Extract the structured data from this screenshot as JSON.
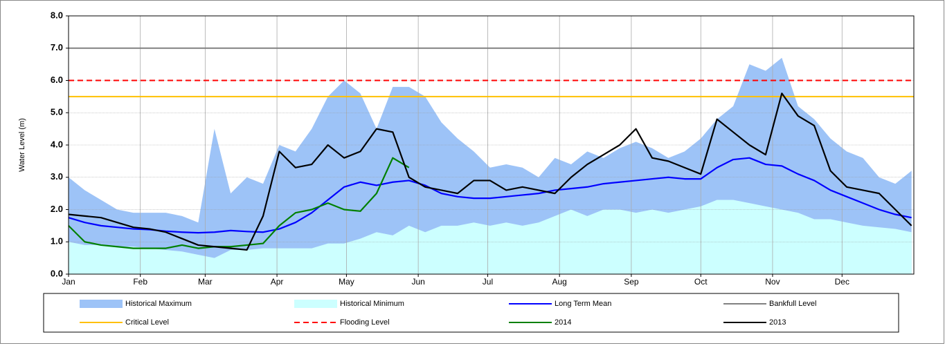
{
  "chart_data": {
    "type": "line",
    "y_label": "Water Level (m)",
    "xlim": [
      0,
      365
    ],
    "xticks": [
      {
        "value": 0,
        "label": "Jan"
      },
      {
        "value": 31,
        "label": "Feb"
      },
      {
        "value": 59,
        "label": "Mar"
      },
      {
        "value": 90,
        "label": "Apr"
      },
      {
        "value": 120,
        "label": "May"
      },
      {
        "value": 151,
        "label": "Jun"
      },
      {
        "value": 181,
        "label": "Jul"
      },
      {
        "value": 212,
        "label": "Aug"
      },
      {
        "value": 243,
        "label": "Sep"
      },
      {
        "value": 273,
        "label": "Oct"
      },
      {
        "value": 304,
        "label": "Nov"
      },
      {
        "value": 334,
        "label": "Dec"
      }
    ],
    "ylim": [
      0,
      8
    ],
    "yticks": [
      {
        "value": 0,
        "label": "0.0"
      },
      {
        "value": 1,
        "label": "1.0"
      },
      {
        "value": 2,
        "label": "2.0"
      },
      {
        "value": 3,
        "label": "3.0"
      },
      {
        "value": 4,
        "label": "4.0"
      },
      {
        "value": 5,
        "label": "5.0"
      },
      {
        "value": 6,
        "label": "6.0"
      },
      {
        "value": 7,
        "label": "7.0"
      },
      {
        "value": 8,
        "label": "8.0"
      }
    ],
    "grid": true,
    "x": [
      0,
      7,
      14,
      21,
      28,
      35,
      42,
      49,
      56,
      63,
      70,
      77,
      84,
      91,
      98,
      105,
      112,
      119,
      126,
      133,
      140,
      147,
      154,
      161,
      168,
      175,
      182,
      189,
      196,
      203,
      210,
      217,
      224,
      231,
      238,
      245,
      252,
      259,
      266,
      273,
      280,
      287,
      294,
      301,
      308,
      315,
      322,
      329,
      336,
      343,
      350,
      357,
      364
    ],
    "series": [
      {
        "name": "Historical Maximum",
        "kind": "area",
        "color": "#9DC3F7",
        "values": [
          3.0,
          2.6,
          2.3,
          2.0,
          1.9,
          1.9,
          1.9,
          1.8,
          1.6,
          4.5,
          2.5,
          3.0,
          2.8,
          4.0,
          3.8,
          4.5,
          5.5,
          6.0,
          5.6,
          4.5,
          5.8,
          5.8,
          5.5,
          4.7,
          4.2,
          3.8,
          3.3,
          3.4,
          3.3,
          3.0,
          3.6,
          3.4,
          3.8,
          3.6,
          3.9,
          4.1,
          3.9,
          3.6,
          3.8,
          4.2,
          4.8,
          5.2,
          6.5,
          6.3,
          6.7,
          5.2,
          4.8,
          4.2,
          3.8,
          3.6,
          3.0,
          2.8,
          3.2
        ]
      },
      {
        "name": "Historical Minimum",
        "kind": "area",
        "color": "#CCFFFF",
        "values": [
          1.0,
          0.9,
          0.9,
          0.85,
          0.85,
          0.8,
          0.75,
          0.7,
          0.6,
          0.5,
          0.75,
          0.75,
          0.8,
          0.8,
          0.8,
          0.8,
          0.95,
          0.95,
          1.1,
          1.3,
          1.2,
          1.5,
          1.3,
          1.5,
          1.5,
          1.6,
          1.5,
          1.6,
          1.5,
          1.6,
          1.8,
          2.0,
          1.8,
          2.0,
          2.0,
          1.9,
          2.0,
          1.9,
          2.0,
          2.1,
          2.3,
          2.3,
          2.2,
          2.1,
          2.0,
          1.9,
          1.7,
          1.7,
          1.6,
          1.5,
          1.45,
          1.4,
          1.3
        ]
      },
      {
        "name": "Long Term Mean",
        "kind": "line",
        "color": "#0000FF",
        "values": [
          1.75,
          1.6,
          1.5,
          1.45,
          1.4,
          1.38,
          1.33,
          1.3,
          1.28,
          1.3,
          1.35,
          1.32,
          1.3,
          1.4,
          1.6,
          1.9,
          2.3,
          2.7,
          2.85,
          2.75,
          2.85,
          2.9,
          2.75,
          2.5,
          2.4,
          2.35,
          2.35,
          2.4,
          2.45,
          2.5,
          2.6,
          2.65,
          2.7,
          2.8,
          2.85,
          2.9,
          2.95,
          3.0,
          2.95,
          2.95,
          3.3,
          3.55,
          3.6,
          3.4,
          3.35,
          3.1,
          2.9,
          2.6,
          2.4,
          2.2,
          2.0,
          1.85,
          1.75
        ]
      },
      {
        "name": "Bankfull Level",
        "kind": "hline",
        "color": "#808080",
        "value": 7.0
      },
      {
        "name": "Critical Level",
        "kind": "hline",
        "color": "#FFC000",
        "value": 5.5
      },
      {
        "name": "Flooding Level",
        "kind": "hline",
        "color": "#FF0000",
        "dashed": true,
        "value": 6.0
      },
      {
        "name": "2014",
        "kind": "line",
        "color": "#008000",
        "values": [
          1.5,
          1.0,
          0.9,
          0.85,
          0.8,
          0.8,
          0.8,
          0.9,
          0.8,
          0.85,
          0.85,
          0.9,
          0.95,
          1.5,
          1.9,
          2.0,
          2.2,
          2.0,
          1.95,
          2.5,
          3.6,
          3.3,
          null,
          null,
          null,
          null,
          null,
          null,
          null,
          null,
          null,
          null,
          null,
          null,
          null,
          null,
          null,
          null,
          null,
          null,
          null,
          null,
          null,
          null,
          null,
          null,
          null,
          null,
          null,
          null,
          null,
          null,
          null
        ]
      },
      {
        "name": "2013",
        "kind": "line",
        "color": "#000000",
        "values": [
          1.85,
          1.8,
          1.75,
          1.6,
          1.45,
          1.4,
          1.3,
          1.1,
          0.9,
          0.85,
          0.8,
          0.75,
          1.8,
          3.8,
          3.3,
          3.4,
          4.0,
          3.6,
          3.8,
          4.5,
          4.4,
          3.0,
          2.7,
          2.6,
          2.5,
          2.9,
          2.9,
          2.6,
          2.7,
          2.6,
          2.5,
          3.0,
          3.4,
          3.7,
          4.0,
          4.5,
          3.6,
          3.5,
          3.3,
          3.1,
          4.8,
          4.4,
          4.0,
          3.7,
          5.6,
          4.9,
          4.6,
          3.2,
          2.7,
          2.6,
          2.5,
          2.0,
          1.5
        ]
      }
    ]
  }
}
